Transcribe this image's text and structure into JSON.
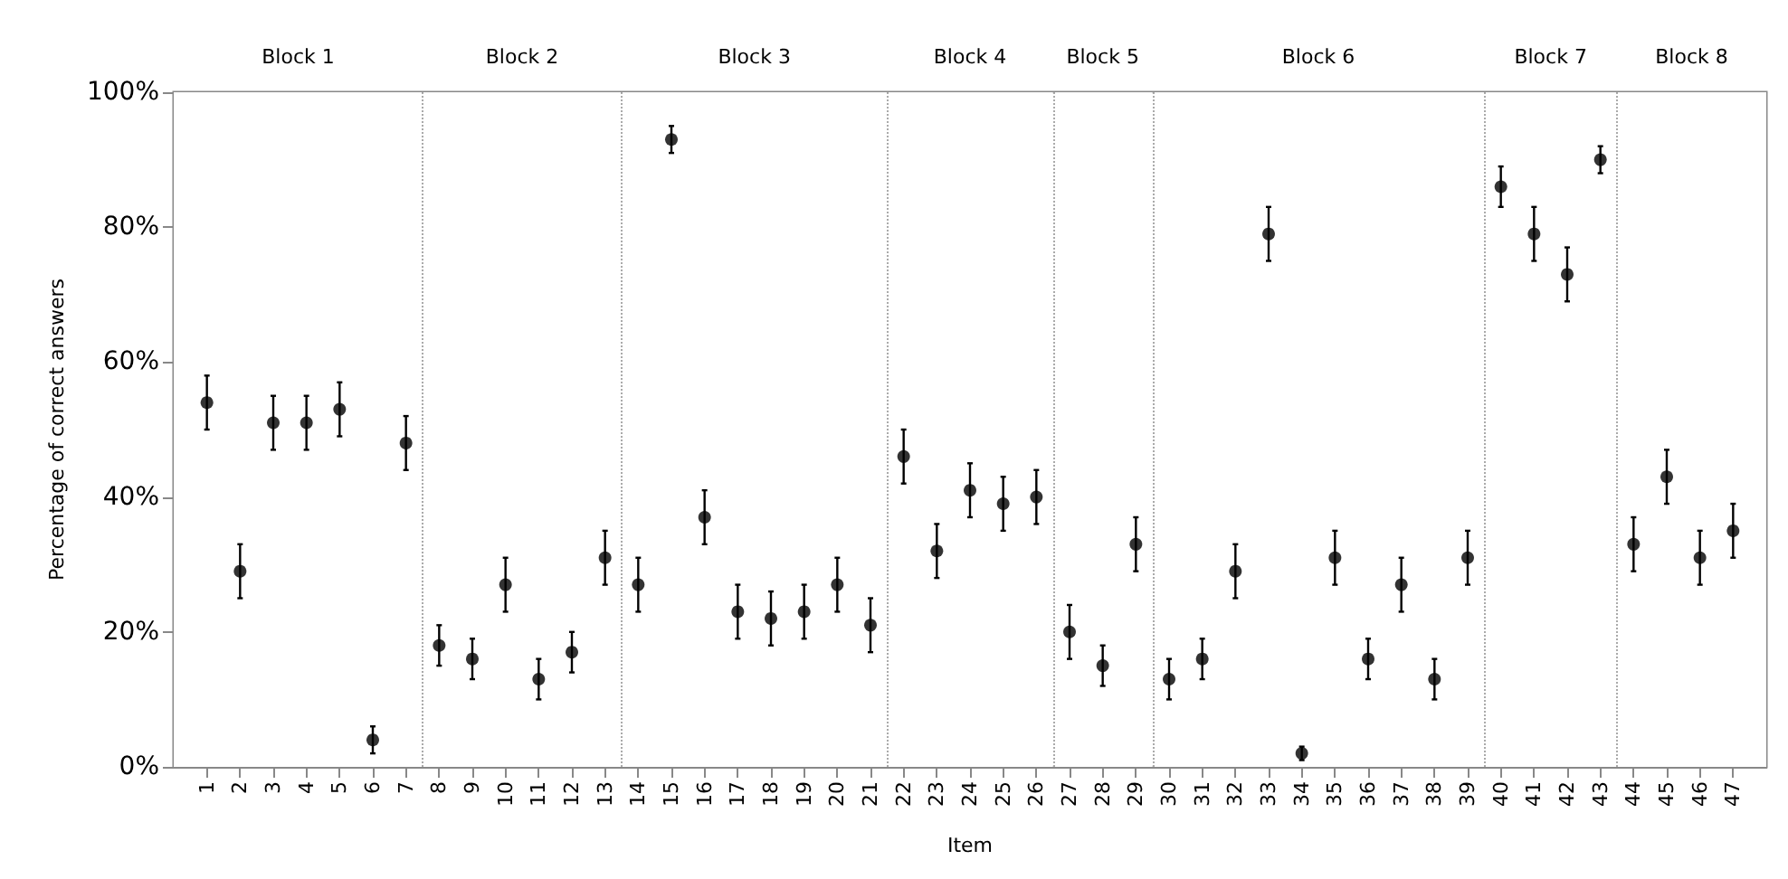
{
  "chart_data": {
    "type": "scatter",
    "xlabel": "Item",
    "ylabel": "Percentage of correct answers",
    "x": [
      1,
      2,
      3,
      4,
      5,
      6,
      7,
      8,
      9,
      10,
      11,
      12,
      13,
      14,
      15,
      16,
      17,
      18,
      19,
      20,
      21,
      22,
      23,
      24,
      25,
      26,
      27,
      28,
      29,
      30,
      31,
      32,
      33,
      34,
      35,
      36,
      37,
      38,
      39,
      40,
      41,
      42,
      43,
      44,
      45,
      46,
      47
    ],
    "series": [
      {
        "color": "#000000",
        "values": [
          54,
          29,
          51,
          51,
          53,
          4,
          48,
          18,
          16,
          27,
          13,
          17,
          31,
          27,
          93,
          37,
          23,
          22,
          23,
          27,
          21,
          46,
          32,
          41,
          39,
          40,
          20,
          15,
          33,
          13,
          16,
          29,
          79,
          2,
          31,
          16,
          27,
          13,
          31,
          86,
          79,
          73,
          90,
          33,
          43,
          31,
          35
        ],
        "errors": [
          4,
          4,
          4,
          4,
          4,
          2,
          4,
          3,
          3,
          4,
          3,
          3,
          4,
          4,
          2,
          4,
          4,
          4,
          4,
          4,
          4,
          4,
          4,
          4,
          4,
          4,
          4,
          3,
          4,
          3,
          3,
          4,
          4,
          1,
          4,
          3,
          4,
          3,
          4,
          3,
          4,
          4,
          2,
          4,
          4,
          4,
          4
        ]
      }
    ],
    "xlim": [
      0,
      48
    ],
    "xticks": [
      1,
      2,
      3,
      4,
      5,
      6,
      7,
      8,
      9,
      10,
      11,
      12,
      13,
      14,
      15,
      16,
      17,
      18,
      19,
      20,
      21,
      22,
      23,
      24,
      25,
      26,
      27,
      28,
      29,
      30,
      31,
      32,
      33,
      34,
      35,
      36,
      37,
      38,
      39,
      40,
      41,
      42,
      43,
      44,
      45,
      46,
      47
    ],
    "ylim": [
      0,
      100
    ],
    "yticks": [
      {
        "value": 0,
        "label": "0%"
      },
      {
        "value": 20,
        "label": "20%"
      },
      {
        "value": 40,
        "label": "40%"
      },
      {
        "value": 60,
        "label": "60%"
      },
      {
        "value": 80,
        "label": "80%"
      },
      {
        "value": 100,
        "label": "100%"
      }
    ],
    "ref_lines": [
      {
        "axis": "x",
        "value": 7.5,
        "color": "#aaaaaa",
        "line_style": "dotted"
      },
      {
        "axis": "x",
        "value": 13.5,
        "color": "#aaaaaa",
        "line_style": "dotted"
      },
      {
        "axis": "x",
        "value": 21.5,
        "color": "#aaaaaa",
        "line_style": "dotted"
      },
      {
        "axis": "x",
        "value": 26.5,
        "color": "#aaaaaa",
        "line_style": "dotted"
      },
      {
        "axis": "x",
        "value": 29.5,
        "color": "#aaaaaa",
        "line_style": "dotted"
      },
      {
        "axis": "x",
        "value": 39.5,
        "color": "#aaaaaa",
        "line_style": "dotted"
      },
      {
        "axis": "x",
        "value": 43.5,
        "color": "#aaaaaa",
        "line_style": "dotted"
      }
    ],
    "bands": [
      {
        "axis": "x",
        "from": 0,
        "to": 7.5,
        "label": "Block 1",
        "color": "#ffffff"
      },
      {
        "axis": "x",
        "from": 7.5,
        "to": 13.5,
        "label": "Block 2",
        "color": "#ffffff"
      },
      {
        "axis": "x",
        "from": 13.5,
        "to": 21.5,
        "label": "Block 3",
        "color": "#ffffff"
      },
      {
        "axis": "x",
        "from": 21.5,
        "to": 26.5,
        "label": "Block 4",
        "color": "#ffffff"
      },
      {
        "axis": "x",
        "from": 26.5,
        "to": 29.5,
        "label": "Block 5",
        "color": "#ffffff"
      },
      {
        "axis": "x",
        "from": 29.5,
        "to": 39.5,
        "label": "Block 6",
        "color": "#ffffff"
      },
      {
        "axis": "x",
        "from": 39.5,
        "to": 43.5,
        "label": "Block 7",
        "color": "#ffffff"
      },
      {
        "axis": "x",
        "from": 43.5,
        "to": 48,
        "label": "Block 8",
        "color": "#ffffff"
      }
    ],
    "marker": "circle",
    "grid": false
  }
}
